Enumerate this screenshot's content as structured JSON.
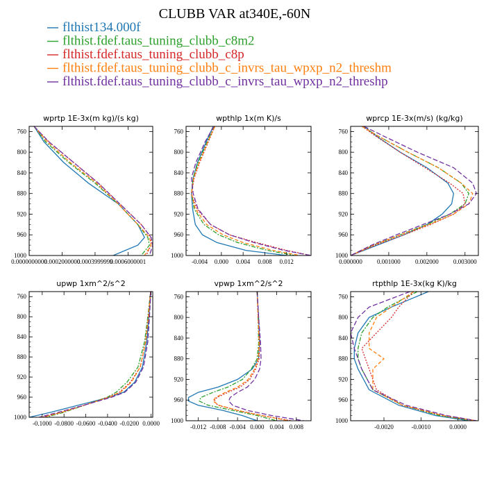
{
  "title": "CLUBB VAR at340E,-60N",
  "legend": [
    {
      "label": "flthist134.000f",
      "color": "#1f77b4",
      "dash": "solid"
    },
    {
      "label": "flthist.fdef.taus_tuning_clubb_c8m2",
      "color": "#2ca02c",
      "dash": "dashdot"
    },
    {
      "label": "flthist.fdef.taus_tuning_clubb_c8p",
      "color": "#d62728",
      "dash": "dot"
    },
    {
      "label": "flthist.fdef.taus_tuning_clubb_c_invrs_tau_wpxp_n2_threshm",
      "color": "#ff7f0e",
      "dash": "dash"
    },
    {
      "label": "flthist.fdef.taus_tuning_clubb_c_invrs_tau_wpxp_n2_threshp",
      "color": "#7030a0",
      "dash": "longdash"
    }
  ],
  "chart_data": [
    {
      "type": "line",
      "title": "wprtp  1E-3x(m kg)/(s kg)",
      "xlim": [
        0.0,
        7.5e-07
      ],
      "ylim": [
        1000,
        750
      ],
      "xticks": [
        0.0,
        2e-07,
        4e-07,
        6e-07
      ],
      "xtick_labels": [
        "0.0000000000",
        "0.0002000000",
        "0.0003999999",
        "0.0006000001"
      ],
      "yticks": [
        760,
        800,
        840,
        880,
        920,
        960,
        1000
      ],
      "ytick_labels": [
        "760",
        "800",
        "840",
        "880",
        "920",
        "960",
        "1000"
      ],
      "series": [
        {
          "y": [
            750,
            780,
            820,
            860,
            900,
            940,
            965,
            980,
            1000
          ],
          "x": [
            3e-08,
            9e-08,
            2.1e-07,
            3.6e-07,
            5.4e-07,
            6.6e-07,
            7e-07,
            6.6e-07,
            5.1e-07
          ]
        },
        {
          "y": [
            750,
            780,
            820,
            860,
            900,
            940,
            965,
            980,
            1000
          ],
          "x": [
            3e-08,
            1e-07,
            2.4e-07,
            4e-07,
            5.4e-07,
            6.6e-07,
            7.2e-07,
            7.3e-07,
            6.8e-07
          ]
        },
        {
          "y": [
            750,
            780,
            820,
            860,
            900,
            940,
            965,
            980,
            1000
          ],
          "x": [
            3e-08,
            1.2e-07,
            2.7e-07,
            4.2e-07,
            5.5e-07,
            6.8e-07,
            7.4e-07,
            7.4e-07,
            7.1e-07
          ]
        },
        {
          "y": [
            750,
            780,
            820,
            860,
            900,
            940,
            965,
            980,
            1000
          ],
          "x": [
            3e-08,
            1.1e-07,
            2.5e-07,
            4.1e-07,
            5.4e-07,
            6.6e-07,
            7.3e-07,
            7.4e-07,
            7e-07
          ]
        },
        {
          "y": [
            750,
            780,
            820,
            860,
            900,
            940,
            965,
            980,
            1000
          ],
          "x": [
            3e-08,
            1.2e-07,
            2.7e-07,
            4.2e-07,
            5.5e-07,
            6.8e-07,
            7.4e-07,
            7.5e-07,
            7.3e-07
          ]
        }
      ]
    },
    {
      "type": "line",
      "title": "wpthlp  1x(m K)/s",
      "xlim": [
        -0.0065,
        0.0165
      ],
      "ylim": [
        1000,
        750
      ],
      "xticks": [
        -0.004,
        0.0,
        0.004,
        0.008,
        0.012
      ],
      "xtick_labels": [
        "-0.004",
        "0.000",
        "0.004",
        "0.008",
        "0.012"
      ],
      "yticks": [
        760,
        800,
        840,
        880,
        920,
        960,
        1000
      ],
      "ytick_labels": [
        "760",
        "800",
        "840",
        "880",
        "920",
        "960",
        "1000"
      ],
      "series": [
        {
          "y": [
            750,
            780,
            820,
            850,
            880,
            910,
            940,
            960,
            975,
            990,
            1000
          ],
          "x": [
            -0.0015,
            -0.0028,
            -0.0044,
            -0.0052,
            -0.0055,
            -0.0053,
            -0.0048,
            -0.0035,
            -0.0008,
            0.0045,
            0.012
          ]
        },
        {
          "y": [
            750,
            780,
            820,
            850,
            880,
            910,
            940,
            960,
            975,
            990,
            1000
          ],
          "x": [
            -0.0013,
            -0.0026,
            -0.0043,
            -0.0052,
            -0.0055,
            -0.005,
            -0.0032,
            -0.0005,
            0.003,
            0.0085,
            0.0135
          ]
        },
        {
          "y": [
            750,
            780,
            820,
            850,
            880,
            910,
            940,
            960,
            975,
            990,
            1000
          ],
          "x": [
            -0.0012,
            -0.0024,
            -0.004,
            -0.005,
            -0.0055,
            -0.0045,
            -0.002,
            0.0015,
            0.0065,
            0.012,
            0.0165
          ]
        },
        {
          "y": [
            750,
            780,
            820,
            850,
            880,
            910,
            940,
            960,
            975,
            990,
            1000
          ],
          "x": [
            -0.0012,
            -0.0025,
            -0.0041,
            -0.0051,
            -0.0055,
            -0.0048,
            -0.0027,
            0.0003,
            0.004,
            0.0095,
            0.0145
          ]
        },
        {
          "y": [
            750,
            780,
            820,
            850,
            880,
            910,
            940,
            960,
            975,
            990,
            1000
          ],
          "x": [
            -0.0014,
            -0.003,
            -0.0047,
            -0.0055,
            -0.0052,
            -0.0043,
            -0.002,
            0.0015,
            0.006,
            0.0115,
            0.0165
          ]
        }
      ]
    },
    {
      "type": "line",
      "title": "wprcp  1E-3x(m/s) (kg/kg)",
      "xlim": [
        0.0,
        0.00335
      ],
      "ylim": [
        1000,
        750
      ],
      "xticks": [
        0.0,
        0.001,
        0.002,
        0.003
      ],
      "xtick_labels": [
        "0.000000",
        "0.001000",
        "0.002000",
        "0.003000"
      ],
      "yticks": [
        760,
        800,
        840,
        880,
        920,
        960,
        1000
      ],
      "ytick_labels": [
        "760",
        "800",
        "840",
        "880",
        "920",
        "960",
        "1000"
      ],
      "series": [
        {
          "y": [
            750,
            770,
            800,
            830,
            860,
            880,
            900,
            920,
            940,
            960,
            980,
            1000
          ],
          "x": [
            0.00035,
            0.0007,
            0.0013,
            0.002,
            0.00255,
            0.0027,
            0.00265,
            0.0024,
            0.002,
            0.0014,
            0.0007,
            0.0
          ]
        },
        {
          "y": [
            750,
            770,
            800,
            830,
            860,
            880,
            900,
            920,
            940,
            960,
            980,
            1000
          ],
          "x": [
            0.0003,
            0.00075,
            0.0015,
            0.0023,
            0.0029,
            0.0031,
            0.003,
            0.0026,
            0.002,
            0.0013,
            0.0006,
            0.0
          ]
        },
        {
          "y": [
            750,
            770,
            800,
            830,
            860,
            880,
            900,
            920,
            940,
            960,
            980,
            1000
          ],
          "x": [
            0.0003,
            0.00068,
            0.0013,
            0.00195,
            0.0026,
            0.00295,
            0.003,
            0.0027,
            0.0021,
            0.0014,
            0.00065,
            0.0
          ]
        },
        {
          "y": [
            750,
            770,
            800,
            830,
            860,
            880,
            900,
            920,
            940,
            960,
            980,
            1000
          ],
          "x": [
            0.0003,
            0.00075,
            0.0015,
            0.0023,
            0.0029,
            0.0032,
            0.0031,
            0.0027,
            0.00205,
            0.0013,
            0.0006,
            0.0
          ]
        },
        {
          "y": [
            750,
            770,
            800,
            830,
            860,
            880,
            900,
            920,
            940,
            960,
            980,
            1000
          ],
          "x": [
            0.00035,
            0.0009,
            0.00175,
            0.0027,
            0.0032,
            0.0033,
            0.0031,
            0.0026,
            0.0019,
            0.0012,
            0.00055,
            0.0
          ]
        }
      ]
    },
    {
      "type": "line",
      "title": "upwp  1xm^2/s^2",
      "xlim": [
        -0.112,
        0.0015
      ],
      "ylim": [
        1000,
        750
      ],
      "xticks": [
        -0.1,
        -0.08,
        -0.06,
        -0.04,
        -0.02,
        0.0
      ],
      "xtick_labels": [
        "-0.1000",
        "-0.0800",
        "-0.0600",
        "-0.0400",
        "-0.0200",
        "0.0000"
      ],
      "yticks": [
        760,
        800,
        840,
        880,
        920,
        960,
        1000
      ],
      "ytick_labels": [
        "760",
        "800",
        "840",
        "880",
        "920",
        "960",
        "1000"
      ],
      "series": [
        {
          "y": [
            750,
            800,
            850,
            900,
            930,
            950,
            960,
            975,
            990,
            1000
          ],
          "x": [
            -0.0005,
            -0.002,
            -0.004,
            -0.008,
            -0.015,
            -0.025,
            -0.038,
            -0.065,
            -0.092,
            -0.112
          ]
        },
        {
          "y": [
            750,
            800,
            850,
            900,
            930,
            950,
            960,
            975,
            990,
            1000
          ],
          "x": [
            -0.0005,
            -0.003,
            -0.006,
            -0.012,
            -0.022,
            -0.032,
            -0.04,
            -0.06,
            -0.08,
            -0.097
          ]
        },
        {
          "y": [
            750,
            800,
            850,
            900,
            930,
            950,
            960,
            975,
            990,
            1000
          ],
          "x": [
            -0.0004,
            -0.0025,
            -0.005,
            -0.01,
            -0.019,
            -0.029,
            -0.039,
            -0.06,
            -0.082,
            -0.1
          ]
        },
        {
          "y": [
            750,
            800,
            850,
            900,
            930,
            950,
            960,
            975,
            990,
            1000
          ],
          "x": [
            -0.0004,
            -0.0025,
            -0.005,
            -0.01,
            -0.018,
            -0.028,
            -0.038,
            -0.06,
            -0.082,
            -0.1
          ]
        },
        {
          "y": [
            750,
            800,
            850,
            900,
            930,
            950,
            960,
            975,
            990,
            1000
          ],
          "x": [
            -0.0003,
            -0.0015,
            -0.003,
            -0.007,
            -0.014,
            -0.024,
            -0.036,
            -0.06,
            -0.085,
            -0.103
          ]
        }
      ]
    },
    {
      "type": "line",
      "title": "vpwp  1xm^2/s^2",
      "xlim": [
        -0.0145,
        0.011
      ],
      "ylim": [
        1000,
        750
      ],
      "xticks": [
        -0.012,
        -0.008,
        -0.004,
        0.0,
        0.004,
        0.008
      ],
      "xtick_labels": [
        "-0.012",
        "-0.008",
        "-0.004",
        "0.000",
        "0.004",
        "0.008"
      ],
      "yticks": [
        760,
        800,
        840,
        880,
        920,
        960,
        1000
      ],
      "ytick_labels": [
        "760",
        "800",
        "840",
        "880",
        "920",
        "960",
        "1000"
      ],
      "series": [
        {
          "y": [
            750,
            800,
            850,
            880,
            900,
            920,
            935,
            945,
            955,
            962,
            970,
            980,
            990,
            1000
          ],
          "x": [
            0.0,
            0.0003,
            0.0005,
            0.0003,
            -0.001,
            -0.004,
            -0.008,
            -0.012,
            -0.014,
            -0.014,
            -0.012,
            -0.007,
            -0.003,
            0.0
          ]
        },
        {
          "y": [
            750,
            800,
            850,
            880,
            900,
            920,
            935,
            945,
            955,
            962,
            970,
            980,
            990,
            1000
          ],
          "x": [
            0.0,
            0.0002,
            0.0003,
            0.0,
            -0.0012,
            -0.003,
            -0.006,
            -0.009,
            -0.0115,
            -0.0118,
            -0.01,
            -0.005,
            0.0,
            0.004
          ]
        },
        {
          "y": [
            750,
            800,
            850,
            880,
            900,
            920,
            935,
            945,
            955,
            962,
            970,
            980,
            990,
            1000
          ],
          "x": [
            0.0,
            0.0002,
            0.0005,
            0.0004,
            -0.0003,
            -0.0015,
            -0.0035,
            -0.006,
            -0.0082,
            -0.0088,
            -0.008,
            -0.004,
            0.001,
            0.007
          ]
        },
        {
          "y": [
            750,
            800,
            850,
            880,
            900,
            920,
            935,
            945,
            955,
            962,
            970,
            980,
            990,
            1000
          ],
          "x": [
            0.0,
            0.0002,
            0.0004,
            0.0002,
            -0.0005,
            -0.0018,
            -0.004,
            -0.0065,
            -0.0085,
            -0.009,
            -0.0078,
            -0.004,
            0.001,
            0.0065
          ]
        },
        {
          "y": [
            750,
            800,
            850,
            880,
            900,
            920,
            935,
            945,
            955,
            962,
            970,
            980,
            990,
            1000
          ],
          "x": [
            0.0,
            0.0003,
            0.0007,
            0.0008,
            0.0005,
            -0.0005,
            -0.002,
            -0.004,
            -0.0055,
            -0.0058,
            -0.005,
            -0.002,
            0.003,
            0.0095
          ]
        }
      ]
    },
    {
      "type": "line",
      "title": "rtpthlp  1E-3x(kg K)/kg",
      "xlim": [
        -0.0029,
        0.00055
      ],
      "ylim": [
        1000,
        750
      ],
      "xticks": [
        -0.002,
        -0.001,
        0.0
      ],
      "xtick_labels": [
        "-0.0020",
        "-0.0010",
        "0.0000"
      ],
      "yticks": [
        760,
        800,
        840,
        880,
        920,
        960,
        1000
      ],
      "ytick_labels": [
        "760",
        "800",
        "840",
        "880",
        "920",
        "960",
        "1000"
      ],
      "series": [
        {
          "y": [
            750,
            780,
            800,
            830,
            860,
            880,
            900,
            940,
            970,
            990,
            1000
          ],
          "x": [
            -0.0008,
            -0.0018,
            -0.0024,
            -0.0027,
            -0.0028,
            -0.0028,
            -0.0027,
            -0.0024,
            -0.0016,
            -0.0006,
            0.0003
          ]
        },
        {
          "y": [
            750,
            780,
            800,
            830,
            860,
            880,
            900,
            940,
            970,
            990,
            1000
          ],
          "x": [
            -0.0011,
            -0.0019,
            -0.0023,
            -0.0026,
            -0.0027,
            -0.0027,
            -0.0026,
            -0.0023,
            -0.0015,
            -0.0005,
            0.0004
          ]
        },
        {
          "y": [
            750,
            780,
            800,
            830,
            860,
            880,
            900,
            940,
            970,
            990,
            1000
          ],
          "x": [
            -0.0012,
            -0.0016,
            -0.0018,
            -0.0022,
            -0.0026,
            -0.0025,
            -0.0024,
            -0.0022,
            -0.0015,
            -0.0004,
            0.0005
          ]
        },
        {
          "y": [
            750,
            780,
            800,
            830,
            860,
            880,
            900,
            940,
            970,
            990,
            1000
          ],
          "x": [
            -0.0012,
            -0.0018,
            -0.0022,
            -0.0024,
            -0.0024,
            -0.002,
            -0.0023,
            -0.0023,
            -0.0015,
            -0.0004,
            0.0005
          ]
        },
        {
          "y": [
            750,
            780,
            800,
            830,
            860,
            880,
            900,
            940,
            970,
            990,
            1000
          ],
          "x": [
            -0.0013,
            -0.0024,
            -0.0027,
            -0.0029,
            -0.0028,
            -0.0027,
            -0.0026,
            -0.0023,
            -0.0014,
            -0.0003,
            0.0005
          ]
        }
      ]
    }
  ]
}
